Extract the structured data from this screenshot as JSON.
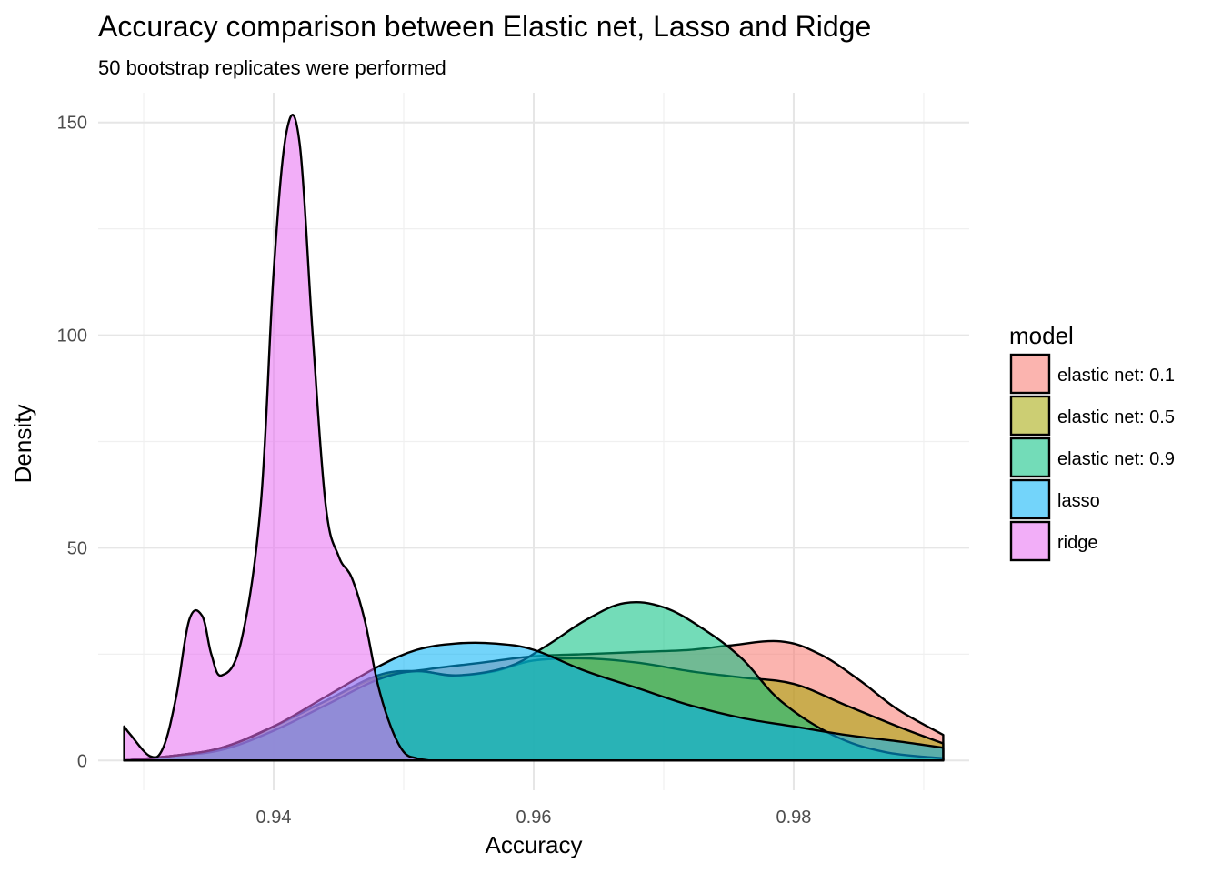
{
  "chart_data": {
    "type": "area",
    "subtype": "density",
    "title": "Accuracy comparison between Elastic net, Lasso and Ridge",
    "subtitle": "50 bootstrap replicates were performed",
    "xlabel": "Accuracy",
    "ylabel": "Density",
    "xlim": [
      0.9265,
      0.9935
    ],
    "ylim": [
      -7,
      157
    ],
    "x_ticks": [
      0.94,
      0.96,
      0.98
    ],
    "x_tick_labels": [
      "0.94",
      "0.96",
      "0.98"
    ],
    "y_ticks": [
      0,
      50,
      100,
      150
    ],
    "y_tick_labels": [
      "0",
      "50",
      "100",
      "150"
    ],
    "grid": true,
    "legend": {
      "title": "model",
      "position": "right"
    },
    "series": [
      {
        "name": "elastic net: 0.1",
        "color": "#F8766D",
        "x": [
          0.9285,
          0.932,
          0.936,
          0.94,
          0.944,
          0.948,
          0.952,
          0.956,
          0.96,
          0.964,
          0.968,
          0.972,
          0.975,
          0.979,
          0.982,
          0.985,
          0.988,
          0.9915
        ],
        "y": [
          0,
          1,
          3,
          8,
          14,
          19.5,
          21.5,
          23,
          24.5,
          25,
          25.5,
          26,
          27,
          28,
          25,
          19,
          12,
          6
        ]
      },
      {
        "name": "elastic net: 0.5",
        "color": "#A3A500",
        "x": [
          0.9285,
          0.932,
          0.936,
          0.94,
          0.944,
          0.948,
          0.951,
          0.954,
          0.957,
          0.96,
          0.964,
          0.968,
          0.972,
          0.976,
          0.98,
          0.984,
          0.988,
          0.9915
        ],
        "y": [
          0,
          1,
          3,
          8,
          14,
          20,
          21,
          20,
          21,
          23.5,
          24,
          23,
          21,
          19.5,
          18,
          13,
          8,
          4
        ]
      },
      {
        "name": "elastic net: 0.9",
        "color": "#00BF7D",
        "x": [
          0.9285,
          0.932,
          0.936,
          0.94,
          0.944,
          0.948,
          0.951,
          0.954,
          0.958,
          0.961,
          0.964,
          0.967,
          0.97,
          0.973,
          0.976,
          0.979,
          0.983,
          0.987,
          0.9915
        ],
        "y": [
          0,
          1,
          2.5,
          7,
          13,
          19,
          21,
          20,
          22,
          27,
          33,
          37,
          36,
          31,
          24,
          14,
          6,
          2,
          0.5
        ]
      },
      {
        "name": "lasso",
        "color": "#00B0F6",
        "x": [
          0.9285,
          0.932,
          0.936,
          0.94,
          0.944,
          0.948,
          0.951,
          0.954,
          0.957,
          0.96,
          0.964,
          0.968,
          0.972,
          0.976,
          0.98,
          0.984,
          0.988,
          0.9915
        ],
        "y": [
          0,
          1,
          3,
          8,
          15,
          22,
          26,
          27.5,
          27.5,
          26,
          21,
          17,
          13,
          10,
          8,
          6,
          4.5,
          3
        ]
      },
      {
        "name": "ridge",
        "color": "#E76BF3",
        "x": [
          0.9285,
          0.929,
          0.9305,
          0.9315,
          0.9325,
          0.9335,
          0.9345,
          0.9352,
          0.936,
          0.9375,
          0.939,
          0.94,
          0.941,
          0.942,
          0.943,
          0.944,
          0.945,
          0.946,
          0.947,
          0.948,
          0.949,
          0.95,
          0.951,
          0.952
        ],
        "y": [
          8,
          6,
          1,
          3,
          15,
          33,
          34,
          25,
          20,
          28,
          60,
          115,
          148,
          145,
          100,
          60,
          48,
          43,
          33,
          18,
          8,
          2,
          0.5,
          0
        ]
      }
    ]
  }
}
